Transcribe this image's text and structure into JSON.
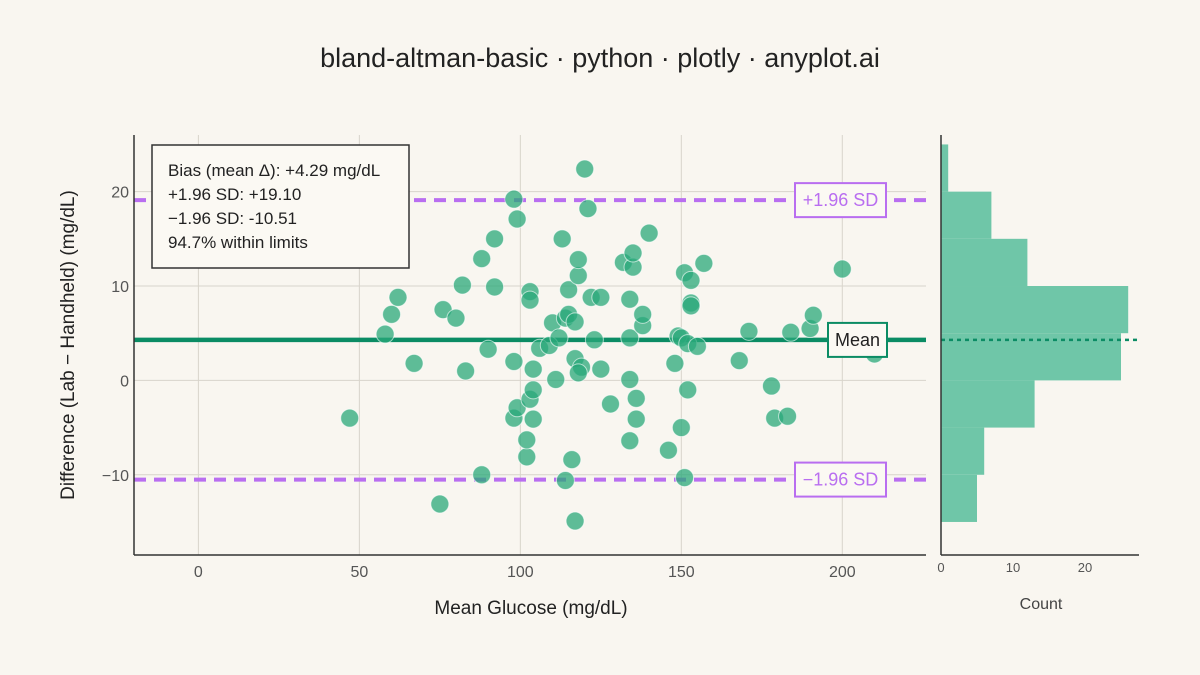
{
  "chart_data": {
    "type": "scatter",
    "title": "bland-altman-basic · python · plotly · anyplot.ai",
    "xlabel": "Mean Glucose (mg/dL)",
    "ylabel": "Difference (Lab − Handheld) (mg/dL)",
    "xlim": [
      -20,
      226
    ],
    "ylim": [
      -18.5,
      26
    ],
    "x_ticks": [
      0,
      50,
      100,
      150,
      200
    ],
    "y_ticks": [
      -10,
      0,
      10,
      20
    ],
    "grid": true,
    "colors": {
      "points": "#2aa87a",
      "mean_line": "#0b8c64",
      "limits": "#b96ef0",
      "histogram": "#6fc6a8",
      "background": "#f9f6f0"
    },
    "bias": 4.29,
    "upper_loa": 19.1,
    "lower_loa": -10.51,
    "labels": {
      "upper": "+1.96 SD",
      "lower": "−1.96 SD",
      "mean": "Mean"
    },
    "stats_box": [
      "Bias (mean Δ): +4.29 mg/dL",
      "+1.96 SD: +19.10",
      "−1.96 SD: -10.51",
      "94.7% within limits"
    ],
    "points": [
      {
        "x": 47,
        "y": -4
      },
      {
        "x": 58,
        "y": 4.9
      },
      {
        "x": 60,
        "y": 7
      },
      {
        "x": 62,
        "y": 8.8
      },
      {
        "x": 67,
        "y": 1.8
      },
      {
        "x": 76,
        "y": 7.5
      },
      {
        "x": 75,
        "y": -13.1
      },
      {
        "x": 80,
        "y": 6.6
      },
      {
        "x": 82,
        "y": 10.1
      },
      {
        "x": 83,
        "y": 1
      },
      {
        "x": 88,
        "y": 12.9
      },
      {
        "x": 88,
        "y": -10
      },
      {
        "x": 90,
        "y": 3.3
      },
      {
        "x": 92,
        "y": 15
      },
      {
        "x": 92,
        "y": 9.9
      },
      {
        "x": 98,
        "y": 19.2
      },
      {
        "x": 99,
        "y": 17.1
      },
      {
        "x": 98,
        "y": 2
      },
      {
        "x": 98,
        "y": -4
      },
      {
        "x": 99,
        "y": -2.9
      },
      {
        "x": 102,
        "y": -8.1
      },
      {
        "x": 102,
        "y": -6.3
      },
      {
        "x": 103,
        "y": -2
      },
      {
        "x": 104,
        "y": -1
      },
      {
        "x": 104,
        "y": -4.1
      },
      {
        "x": 103,
        "y": 9.4
      },
      {
        "x": 103,
        "y": 8.5
      },
      {
        "x": 104,
        "y": 1.2
      },
      {
        "x": 106,
        "y": 3.4
      },
      {
        "x": 109,
        "y": 3.7
      },
      {
        "x": 110,
        "y": 6.1
      },
      {
        "x": 112,
        "y": 4.5
      },
      {
        "x": 111,
        "y": 0.1
      },
      {
        "x": 113,
        "y": 15
      },
      {
        "x": 114,
        "y": 6.6
      },
      {
        "x": 115,
        "y": 7
      },
      {
        "x": 115,
        "y": 9.6
      },
      {
        "x": 114,
        "y": -10.6
      },
      {
        "x": 117,
        "y": 6.2
      },
      {
        "x": 117,
        "y": 2.3
      },
      {
        "x": 116,
        "y": -8.4
      },
      {
        "x": 117,
        "y": -14.9
      },
      {
        "x": 118,
        "y": 11.1
      },
      {
        "x": 118,
        "y": 12.8
      },
      {
        "x": 119,
        "y": 1.4
      },
      {
        "x": 118,
        "y": 0.8
      },
      {
        "x": 120,
        "y": 22.4
      },
      {
        "x": 121,
        "y": 18.2
      },
      {
        "x": 122,
        "y": 8.8
      },
      {
        "x": 123,
        "y": 4.3
      },
      {
        "x": 125,
        "y": 8.8
      },
      {
        "x": 125,
        "y": 1.2
      },
      {
        "x": 128,
        "y": -2.5
      },
      {
        "x": 132,
        "y": 12.5
      },
      {
        "x": 134,
        "y": 4.5
      },
      {
        "x": 134,
        "y": 8.6
      },
      {
        "x": 135,
        "y": 12
      },
      {
        "x": 135,
        "y": 13.5
      },
      {
        "x": 134,
        "y": 0.1
      },
      {
        "x": 134,
        "y": -6.4
      },
      {
        "x": 136,
        "y": -4.1
      },
      {
        "x": 136,
        "y": -1.9
      },
      {
        "x": 138,
        "y": 5.8
      },
      {
        "x": 138,
        "y": 7
      },
      {
        "x": 140,
        "y": 15.6
      },
      {
        "x": 146,
        "y": -7.4
      },
      {
        "x": 148,
        "y": 1.8
      },
      {
        "x": 149,
        "y": 4.7
      },
      {
        "x": 150,
        "y": 4.5
      },
      {
        "x": 150,
        "y": -5
      },
      {
        "x": 151,
        "y": 11.4
      },
      {
        "x": 152,
        "y": -1
      },
      {
        "x": 151,
        "y": -10.3
      },
      {
        "x": 152,
        "y": 3.9
      },
      {
        "x": 153,
        "y": 8.2
      },
      {
        "x": 153,
        "y": 7.9
      },
      {
        "x": 153,
        "y": 10.6
      },
      {
        "x": 155,
        "y": 3.6
      },
      {
        "x": 157,
        "y": 12.4
      },
      {
        "x": 168,
        "y": 2.1
      },
      {
        "x": 171,
        "y": 5.2
      },
      {
        "x": 178,
        "y": -0.6
      },
      {
        "x": 179,
        "y": -4
      },
      {
        "x": 183,
        "y": -3.8
      },
      {
        "x": 184,
        "y": 5.1
      },
      {
        "x": 190,
        "y": 5.5
      },
      {
        "x": 191,
        "y": 6.9
      },
      {
        "x": 200,
        "y": 11.8
      },
      {
        "x": 210,
        "y": 2.8
      }
    ],
    "histogram": {
      "xlabel": "Count",
      "x_ticks": [
        0,
        10,
        20
      ],
      "xlim": [
        0,
        27.5
      ],
      "bins": [
        {
          "from": -15,
          "to": -10,
          "count": 5
        },
        {
          "from": -10,
          "to": -5,
          "count": 6
        },
        {
          "from": -5,
          "to": 0,
          "count": 13
        },
        {
          "from": 0,
          "to": 5,
          "count": 25
        },
        {
          "from": 5,
          "to": 10,
          "count": 26
        },
        {
          "from": 10,
          "to": 15,
          "count": 12
        },
        {
          "from": 15,
          "to": 20,
          "count": 7
        },
        {
          "from": 20,
          "to": 25,
          "count": 1
        }
      ]
    }
  }
}
